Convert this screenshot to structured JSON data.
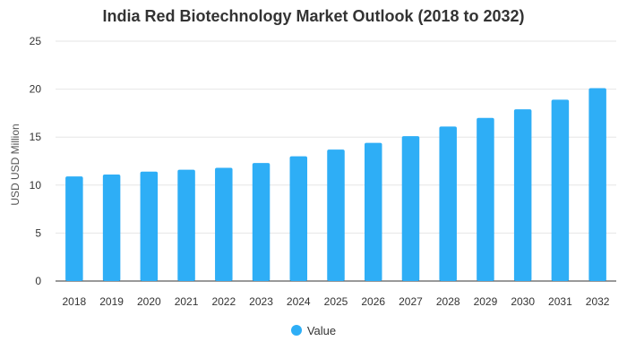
{
  "chart_data": {
    "type": "bar",
    "title": "India Red Biotechnology Market Outlook (2018 to 2032)",
    "xlabel": "",
    "ylabel": "USD USD Million",
    "ylim": [
      0,
      25
    ],
    "yticks": [
      0,
      5,
      10,
      15,
      20,
      25
    ],
    "grid": true,
    "legend_position": "bottom-center",
    "categories": [
      "2018",
      "2019",
      "2020",
      "2021",
      "2022",
      "2023",
      "2024",
      "2025",
      "2026",
      "2027",
      "2028",
      "2029",
      "2030",
      "2031",
      "2032"
    ],
    "series": [
      {
        "name": "Value",
        "color": "#2eaef6",
        "values": [
          10.9,
          11.1,
          11.4,
          11.6,
          11.8,
          12.3,
          13.0,
          13.7,
          14.4,
          15.1,
          16.1,
          17.0,
          17.9,
          18.9,
          20.1
        ]
      }
    ]
  }
}
